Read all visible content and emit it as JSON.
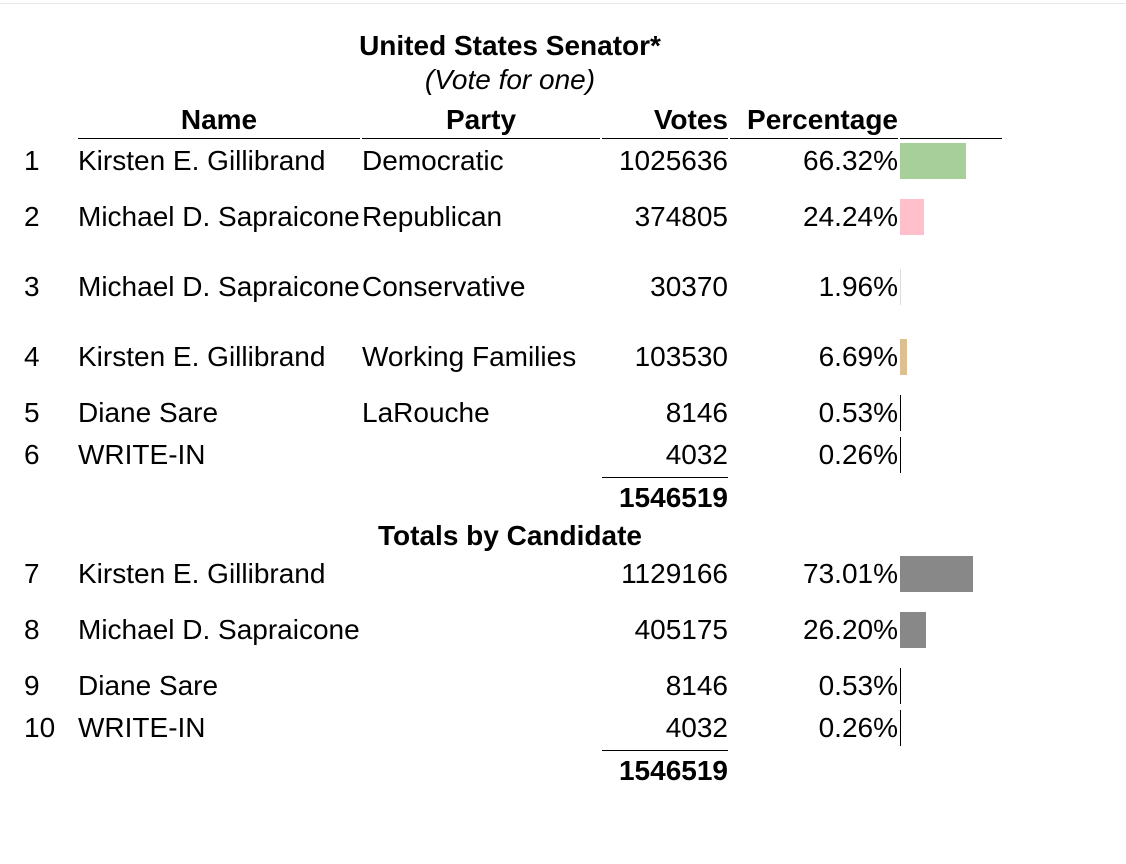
{
  "race": {
    "title": "United States Senator*",
    "subtitle": "(Vote for one)"
  },
  "headers": {
    "name": "Name",
    "party": "Party",
    "votes": "Votes",
    "percentage": "Percentage"
  },
  "by_party": [
    {
      "num": "1",
      "name": "Kirsten E. Gillibrand",
      "party": "Democratic",
      "votes": "1025636",
      "pct": "66.32%",
      "bar_color": "#a6cf9a"
    },
    {
      "num": "2",
      "name": "Michael D. Sapraicone",
      "party": "Republican",
      "votes": "374805",
      "pct": "24.24%",
      "bar_color": "#ffc0cb"
    },
    {
      "num": "3",
      "name": "Michael D. Sapraicone",
      "party": "Conservative",
      "votes": "30370",
      "pct": "1.96%",
      "bar_color": "#dddddd"
    },
    {
      "num": "4",
      "name": "Kirsten E. Gillibrand",
      "party": "Working Families",
      "votes": "103530",
      "pct": "6.69%",
      "bar_color": "#dcc092"
    },
    {
      "num": "5",
      "name": "Diane Sare",
      "party": "LaRouche",
      "votes": "8146",
      "pct": "0.53%",
      "bar_color": "#000000"
    },
    {
      "num": "6",
      "name": "WRITE-IN",
      "party": "",
      "votes": "4032",
      "pct": "0.26%",
      "bar_color": "#000000"
    }
  ],
  "by_party_total": "1546519",
  "candidates_section": {
    "title": "Totals by Candidate"
  },
  "by_candidate": [
    {
      "num": "7",
      "name": "Kirsten E. Gillibrand",
      "votes": "1129166",
      "pct": "73.01%",
      "bar_color": "#888888"
    },
    {
      "num": "8",
      "name": "Michael D. Sapraicone",
      "votes": "405175",
      "pct": "26.20%",
      "bar_color": "#888888"
    },
    {
      "num": "9",
      "name": "Diane Sare",
      "votes": "8146",
      "pct": "0.53%",
      "bar_color": "#000000"
    },
    {
      "num": "10",
      "name": "WRITE-IN",
      "votes": "4032",
      "pct": "0.26%",
      "bar_color": "#000000"
    }
  ],
  "by_candidate_total": "1546519"
}
